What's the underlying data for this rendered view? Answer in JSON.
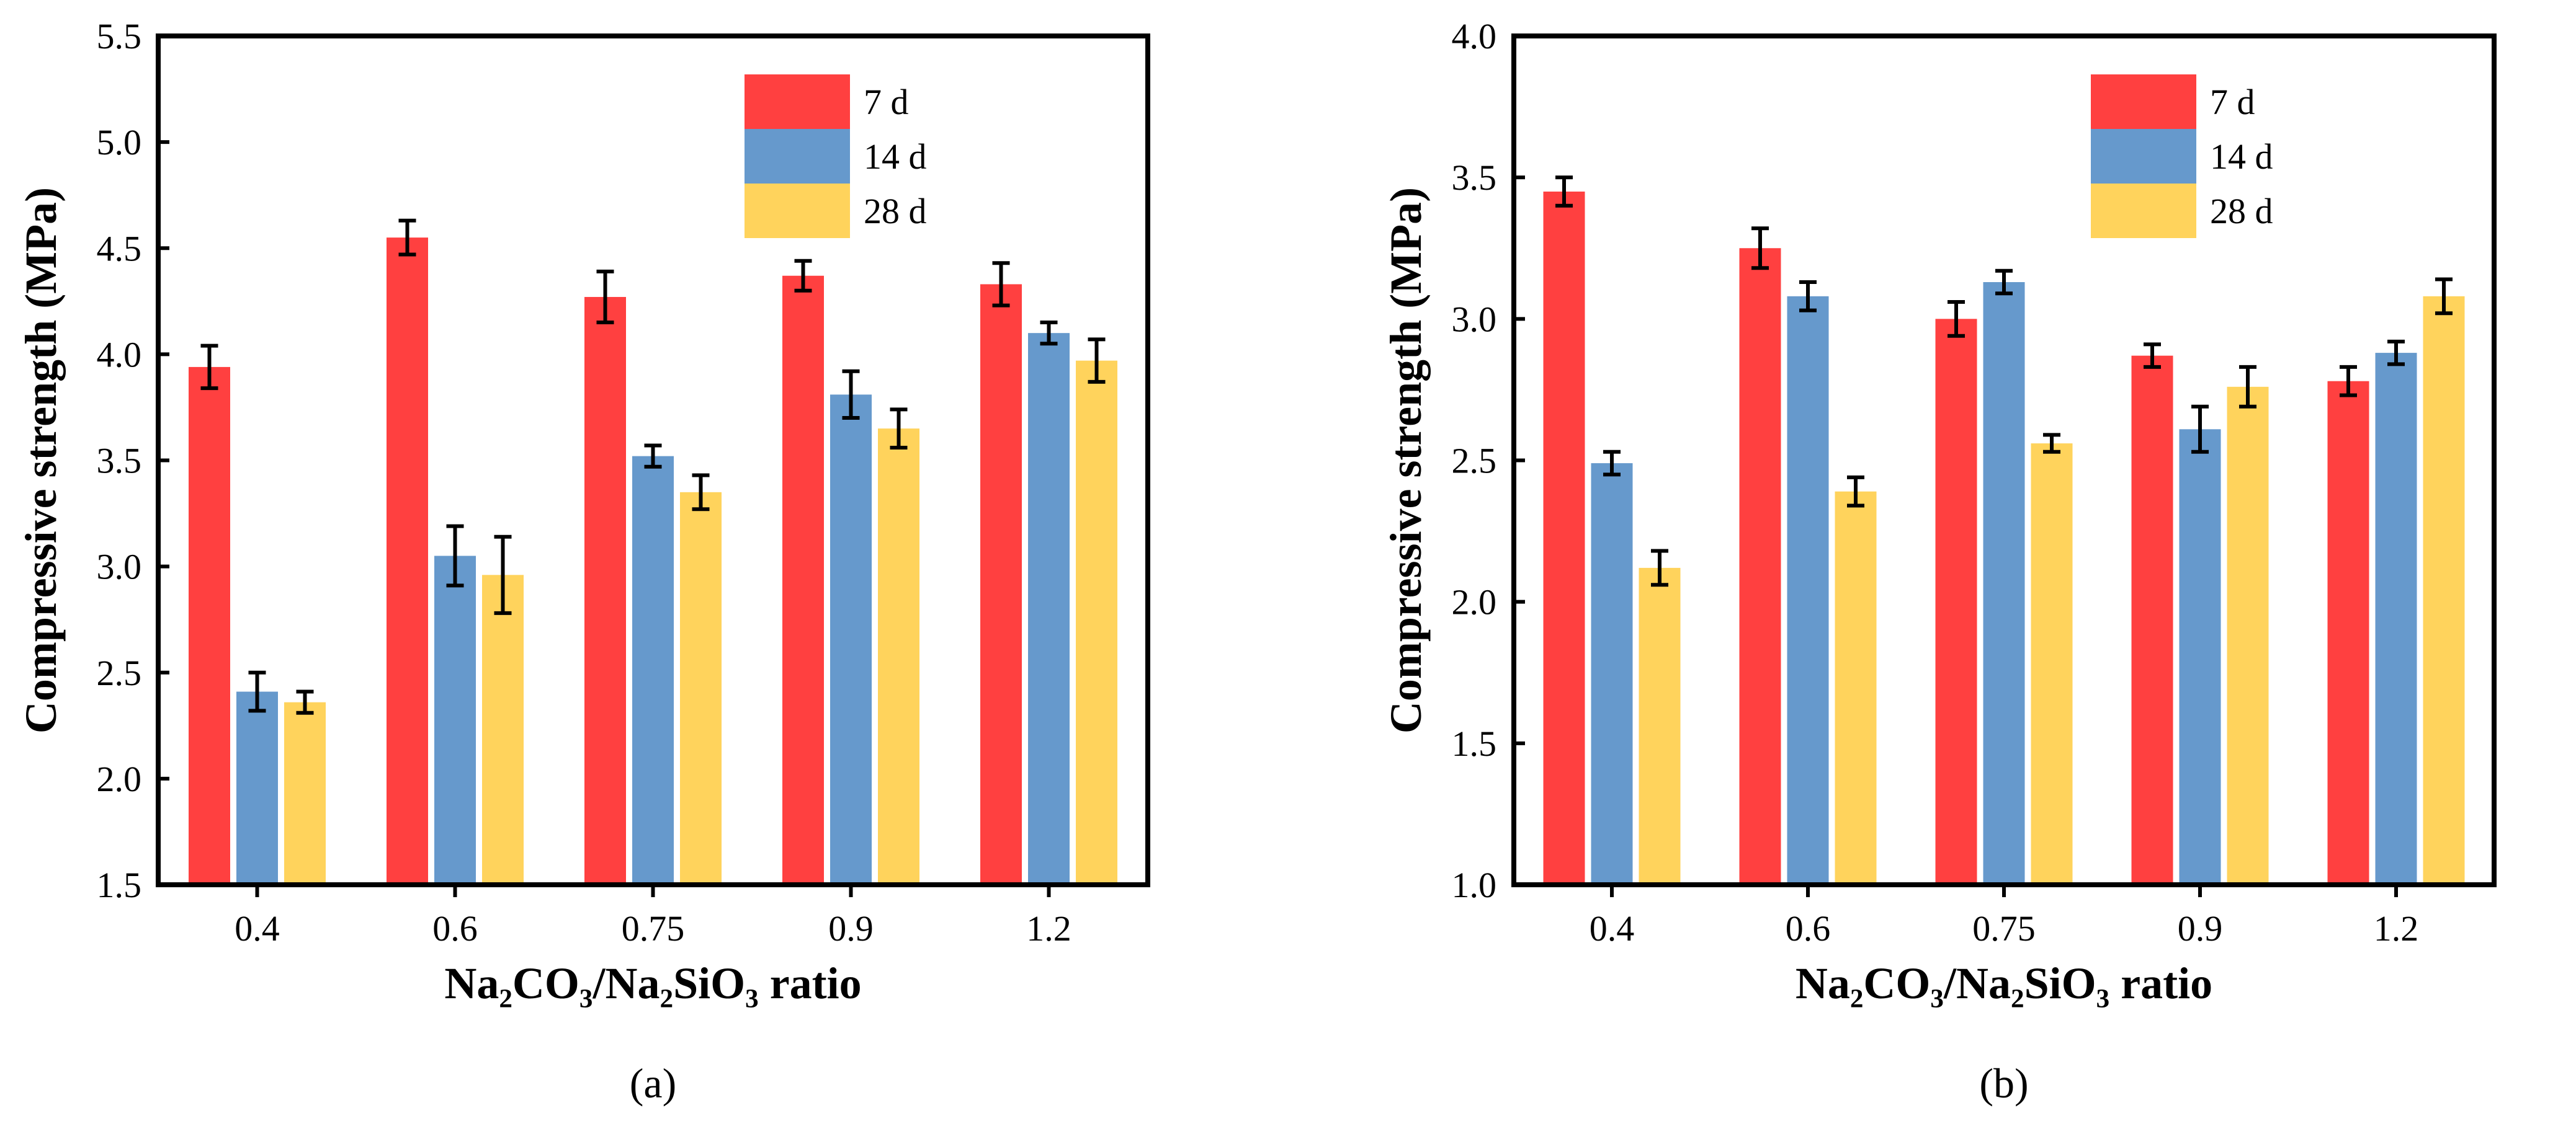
{
  "chart_data": [
    {
      "type": "bar",
      "panel_label": "(a)",
      "categories": [
        "0.4",
        "0.6",
        "0.75",
        "0.9",
        "1.2"
      ],
      "ylabel": "Compressive strength (MPa)",
      "xlabel": "Na₂CO₃/Na₂SiO₃ ratio",
      "ylim": [
        1.5,
        5.5
      ],
      "yticks": [
        "1.5",
        "2.0",
        "2.5",
        "3.0",
        "3.5",
        "4.0",
        "4.5",
        "5.0",
        "5.5"
      ],
      "legend_position": "top-right",
      "series": [
        {
          "name": "7 d",
          "color": "#FF4040",
          "values": [
            3.94,
            4.55,
            4.27,
            4.37,
            4.33
          ],
          "errors": [
            0.1,
            0.08,
            0.12,
            0.07,
            0.1
          ]
        },
        {
          "name": "14 d",
          "color": "#6699CC",
          "values": [
            2.41,
            3.05,
            3.52,
            3.81,
            4.1
          ],
          "errors": [
            0.09,
            0.14,
            0.05,
            0.11,
            0.05
          ]
        },
        {
          "name": "28 d",
          "color": "#FFD35C",
          "values": [
            2.36,
            2.96,
            3.35,
            3.65,
            3.97
          ],
          "errors": [
            0.05,
            0.18,
            0.08,
            0.09,
            0.1
          ]
        }
      ]
    },
    {
      "type": "bar",
      "panel_label": "(b)",
      "categories": [
        "0.4",
        "0.6",
        "0.75",
        "0.9",
        "1.2"
      ],
      "ylabel": "Compressive strength (MPa)",
      "xlabel": "Na₂CO₃/Na₂SiO₃ ratio",
      "ylim": [
        1.0,
        4.0
      ],
      "yticks": [
        "1.0",
        "1.5",
        "2.0",
        "2.5",
        "3.0",
        "3.5",
        "4.0"
      ],
      "legend_position": "top-right",
      "series": [
        {
          "name": "7 d",
          "color": "#FF4040",
          "values": [
            3.45,
            3.25,
            3.0,
            2.87,
            2.78
          ],
          "errors": [
            0.05,
            0.07,
            0.06,
            0.04,
            0.05
          ]
        },
        {
          "name": "14 d",
          "color": "#6699CC",
          "values": [
            2.49,
            3.08,
            3.13,
            2.61,
            2.88
          ],
          "errors": [
            0.04,
            0.05,
            0.04,
            0.08,
            0.04
          ]
        },
        {
          "name": "28 d",
          "color": "#FFD35C",
          "values": [
            2.12,
            2.39,
            2.56,
            2.76,
            3.08
          ],
          "errors": [
            0.06,
            0.05,
            0.03,
            0.07,
            0.06
          ]
        }
      ]
    }
  ]
}
